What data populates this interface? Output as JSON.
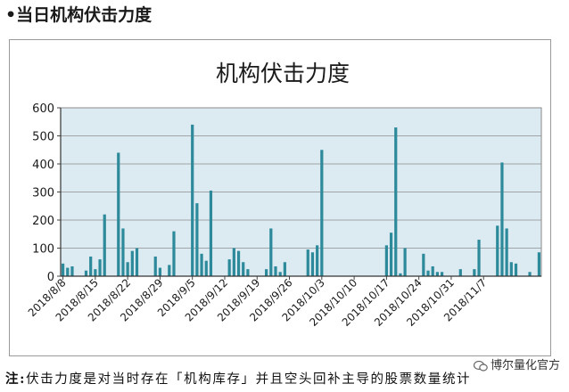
{
  "heading": "•当日机构伏击力度",
  "footnote": {
    "prefix": "注:",
    "text": "伏击力度是对当时存在「机构库存」并且空头回补主导的股票数量统计"
  },
  "watermark": "博尔量化官方",
  "colors": {
    "bar": "#2d8a9b",
    "plot_bg": "#dcebf2",
    "grid": "#8c8c8c"
  },
  "chart_data": {
    "type": "bar",
    "title": "机构伏击力度",
    "ylim": [
      0,
      600
    ],
    "yticks": [
      0,
      100,
      200,
      300,
      400,
      500,
      600
    ],
    "grid": true,
    "xtick_labels": [
      "2018/8/8",
      "2018/8/15",
      "2018/8/22",
      "2018/8/29",
      "2018/9/5",
      "2018/9/12",
      "2018/9/19",
      "2018/9/26",
      "2018/10/3",
      "2018/10/10",
      "2018/10/17",
      "2018/10/24",
      "2018/10/31",
      "2018/11/7"
    ],
    "x_start": "2018/8/8",
    "values": [
      45,
      30,
      35,
      0,
      0,
      20,
      70,
      25,
      60,
      220,
      0,
      0,
      440,
      170,
      50,
      90,
      100,
      0,
      0,
      0,
      70,
      30,
      0,
      40,
      160,
      0,
      0,
      0,
      540,
      260,
      80,
      55,
      305,
      0,
      0,
      0,
      60,
      100,
      90,
      50,
      25,
      0,
      0,
      0,
      25,
      170,
      35,
      15,
      50,
      0,
      0,
      0,
      0,
      95,
      85,
      110,
      450,
      0,
      0,
      0,
      0,
      0,
      0,
      0,
      0,
      0,
      0,
      0,
      0,
      0,
      110,
      155,
      530,
      10,
      100,
      0,
      0,
      0,
      80,
      20,
      35,
      15,
      15,
      0,
      0,
      0,
      25,
      0,
      0,
      25,
      130,
      0,
      0,
      0,
      180,
      405,
      170,
      50,
      45,
      0,
      0,
      15,
      0,
      85
    ]
  }
}
